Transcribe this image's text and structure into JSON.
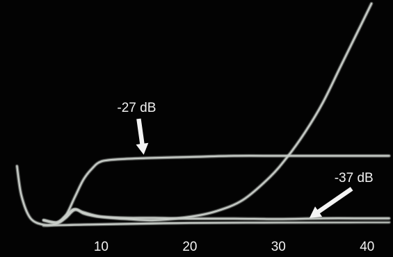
{
  "chart_data": {
    "type": "line",
    "title": "",
    "xlabel": "",
    "ylabel": "",
    "xlim": [
      0,
      43
    ],
    "ylim": [
      0,
      100
    ],
    "grid": false,
    "background_color": "#030303",
    "trace_color": "#c9cec9",
    "text_color": "#f2f2f2",
    "x_ticks": [
      {
        "value": 10,
        "label": "10"
      },
      {
        "value": 20,
        "label": "20"
      },
      {
        "value": 30,
        "label": "30"
      },
      {
        "value": 40,
        "label": "40"
      }
    ],
    "series": [
      {
        "points": [
          [
            3.5,
            4
          ],
          [
            5,
            3
          ],
          [
            6,
            6
          ],
          [
            7,
            14
          ],
          [
            8,
            22
          ],
          [
            9,
            27
          ],
          [
            10,
            30
          ],
          [
            12,
            31
          ],
          [
            15,
            31.5
          ],
          [
            20,
            32
          ],
          [
            25,
            32.5
          ],
          [
            30,
            32.5
          ],
          [
            35,
            32.5
          ],
          [
            40,
            32.5
          ],
          [
            42.5,
            32.5
          ]
        ]
      },
      {
        "points": [
          [
            3.5,
            4
          ],
          [
            5,
            3
          ],
          [
            6,
            6
          ],
          [
            7,
            9
          ],
          [
            8,
            7
          ],
          [
            9,
            6
          ],
          [
            10,
            5.5
          ],
          [
            13,
            5
          ],
          [
            16,
            5
          ],
          [
            20,
            4.7
          ],
          [
            25,
            4.7
          ],
          [
            30,
            4.5
          ],
          [
            35,
            4.8
          ],
          [
            40,
            4.8
          ],
          [
            42.5,
            4.8
          ]
        ]
      },
      {
        "points": [
          [
            0.5,
            28
          ],
          [
            1,
            15
          ],
          [
            2,
            5
          ],
          [
            3.5,
            2
          ],
          [
            5,
            2.5
          ],
          [
            6,
            5
          ],
          [
            7,
            8.5
          ],
          [
            8,
            7.5
          ],
          [
            10,
            5.5
          ],
          [
            13,
            4.5
          ],
          [
            16,
            4
          ],
          [
            20,
            5.5
          ],
          [
            23,
            8
          ],
          [
            26,
            13
          ],
          [
            29,
            23
          ],
          [
            31,
            32
          ],
          [
            33,
            43
          ],
          [
            35,
            56
          ],
          [
            37,
            72
          ],
          [
            39,
            88
          ],
          [
            40.5,
            100
          ]
        ]
      },
      {
        "points": [
          [
            3.5,
            1.5
          ],
          [
            8,
            2
          ],
          [
            15,
            2.5
          ],
          [
            20,
            2.8
          ],
          [
            30,
            3
          ],
          [
            40,
            3.1
          ],
          [
            42.5,
            3.1
          ]
        ]
      }
    ],
    "annotations": [
      {
        "id": "minus-27-db",
        "text": "-27 dB",
        "x": 14,
        "y": 52,
        "arrow_to": [
          14.8,
          33
        ]
      },
      {
        "id": "minus-37-db",
        "text": "-37 dB",
        "x": 38.5,
        "y": 21,
        "arrow_to": [
          33.5,
          5
        ]
      }
    ]
  }
}
